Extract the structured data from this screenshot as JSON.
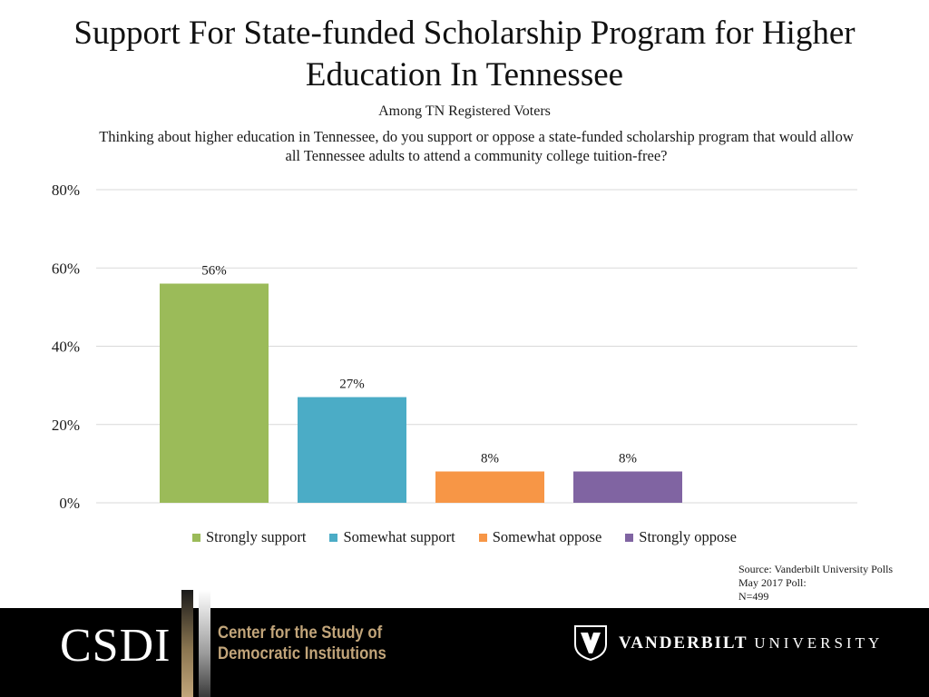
{
  "title": "Support For State-funded Scholarship Program for Higher Education In Tennessee",
  "subtitle": "Among TN Registered Voters",
  "question": "Thinking about higher education in Tennessee, do you support or oppose a state-funded scholarship program that would allow all Tennessee adults to attend a community college tuition-free?",
  "chart_data": {
    "type": "bar",
    "categories": [
      "Strongly support",
      "Somewhat support",
      "Somewhat oppose",
      "Strongly oppose"
    ],
    "values": [
      56,
      27,
      8,
      8
    ],
    "data_labels": [
      "56%",
      "27%",
      "8%",
      "8%"
    ],
    "colors": [
      "#9bbb59",
      "#4bacc6",
      "#f79646",
      "#8064a2"
    ],
    "ylim": [
      0,
      80
    ],
    "yticks": [
      0,
      20,
      40,
      60,
      80
    ],
    "ytick_labels": [
      "0%",
      "20%",
      "40%",
      "60%",
      "80%"
    ],
    "grid": true,
    "legend_placement": "bottom"
  },
  "source": {
    "line1": "Source: Vanderbilt University Polls",
    "line2": "May 2017 Poll:",
    "line3": "N=499"
  },
  "footer": {
    "csdi": "CSDI",
    "center_line1": "Center for the Study of",
    "center_line2": "Democratic Institutions",
    "vu_name": "VANDERBILT",
    "vu_university": "UNIVERSITY",
    "footer_color": "#000000",
    "gold_color": "#c2a57a"
  }
}
